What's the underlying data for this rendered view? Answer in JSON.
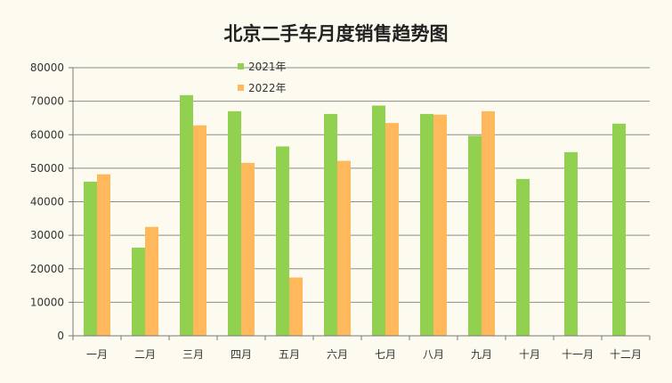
{
  "chart_data": {
    "type": "bar",
    "title": "北京二手车月度销售趋势图",
    "categories": [
      "一月",
      "二月",
      "三月",
      "四月",
      "五月",
      "六月",
      "七月",
      "八月",
      "九月",
      "十月",
      "十一月",
      "十二月"
    ],
    "series": [
      {
        "name": "2021年",
        "color": "#92d050",
        "values": [
          46000,
          26300,
          71800,
          67000,
          56500,
          66200,
          68700,
          66200,
          59700,
          46800,
          54800,
          63300
        ]
      },
      {
        "name": "2022年",
        "color": "#ffb85c",
        "values": [
          48200,
          32500,
          62800,
          51600,
          17400,
          52200,
          63500,
          66000,
          67000,
          null,
          null,
          null
        ]
      }
    ],
    "ylim": [
      0,
      80000
    ],
    "yticks": [
      "0",
      "10000",
      "20000",
      "30000",
      "40000",
      "50000",
      "60000",
      "70000",
      "80000"
    ],
    "grid": true,
    "legend_position": "top-left-inside"
  }
}
